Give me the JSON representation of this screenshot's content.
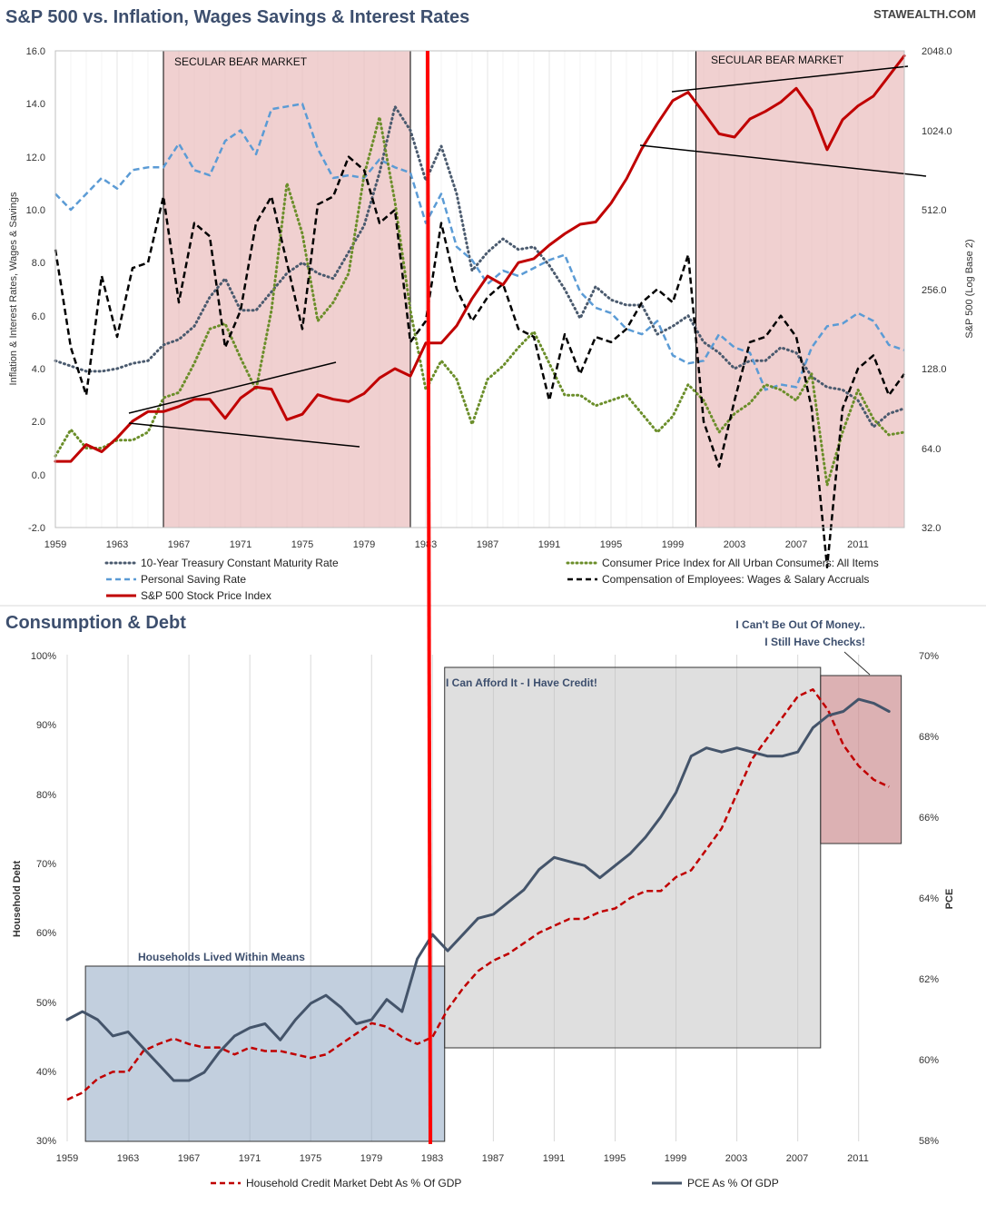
{
  "site": "STAWEALTH.COM",
  "chart_data": [
    {
      "type": "line",
      "title": "S&P 500 vs. Inflation, Wages Savings & Interest Rates",
      "ylabel_left": "Inflation & Interest Rates, Wages & Savings",
      "ylabel_right": "S&P 500  (Log Base 2)",
      "x_range": [
        1959,
        2014
      ],
      "x_ticks": [
        "1959",
        "1963",
        "1967",
        "1971",
        "1975",
        "1979",
        "1983",
        "1987",
        "1991",
        "1995",
        "1999",
        "2003",
        "2007",
        "2011"
      ],
      "ylim_left": [
        -2,
        16
      ],
      "y_ticks_left": [
        "16.0",
        "14.0",
        "12.0",
        "10.0",
        "8.0",
        "6.0",
        "4.0",
        "2.0",
        "0.0",
        "-2.0"
      ],
      "ylim_right_log2": [
        32,
        2048
      ],
      "y_ticks_right": [
        "2048.0",
        "1024.0",
        "512.0",
        "256.0",
        "128.0",
        "64.0",
        "32.0"
      ],
      "shaded_regions": [
        {
          "label": "SECULAR BEAR MARKET",
          "start": 1966,
          "end": 1982
        },
        {
          "label": "SECULAR BEAR MARKET",
          "start": 2000.5,
          "end": 2014
        }
      ],
      "series": [
        {
          "name": "10-Year Treasury Constant Maturity Rate",
          "color": "#4a5a6e",
          "style": "dotted",
          "x": [
            1959,
            1960,
            1961,
            1962,
            1963,
            1964,
            1965,
            1966,
            1967,
            1968,
            1969,
            1970,
            1971,
            1972,
            1973,
            1974,
            1975,
            1976,
            1977,
            1978,
            1979,
            1980,
            1981,
            1982,
            1983,
            1984,
            1985,
            1986,
            1987,
            1988,
            1989,
            1990,
            1991,
            1992,
            1993,
            1994,
            1995,
            1996,
            1997,
            1998,
            1999,
            2000,
            2001,
            2002,
            2003,
            2004,
            2005,
            2006,
            2007,
            2008,
            2009,
            2010,
            2011,
            2012,
            2013,
            2014
          ],
          "values": [
            4.3,
            4.1,
            3.9,
            3.9,
            4.0,
            4.2,
            4.3,
            4.9,
            5.1,
            5.6,
            6.7,
            7.4,
            6.2,
            6.2,
            6.9,
            7.6,
            8.0,
            7.6,
            7.4,
            8.4,
            9.4,
            11.4,
            13.9,
            13.0,
            11.1,
            12.4,
            10.6,
            7.7,
            8.4,
            8.9,
            8.5,
            8.6,
            7.9,
            7.0,
            5.9,
            7.1,
            6.6,
            6.4,
            6.4,
            5.3,
            5.6,
            6.0,
            5.0,
            4.6,
            4.0,
            4.3,
            4.3,
            4.8,
            4.6,
            3.7,
            3.3,
            3.2,
            2.8,
            1.8,
            2.3,
            2.5
          ]
        },
        {
          "name": "Personal Saving Rate",
          "color": "#5b9bd5",
          "style": "dashed",
          "x": [
            1959,
            1960,
            1961,
            1962,
            1963,
            1964,
            1965,
            1966,
            1967,
            1968,
            1969,
            1970,
            1971,
            1972,
            1973,
            1974,
            1975,
            1976,
            1977,
            1978,
            1979,
            1980,
            1981,
            1982,
            1983,
            1984,
            1985,
            1986,
            1987,
            1988,
            1989,
            1990,
            1991,
            1992,
            1993,
            1994,
            1995,
            1996,
            1997,
            1998,
            1999,
            2000,
            2001,
            2002,
            2003,
            2004,
            2005,
            2006,
            2007,
            2008,
            2009,
            2010,
            2011,
            2012,
            2013,
            2014
          ],
          "values": [
            10.6,
            10.0,
            10.6,
            11.2,
            10.8,
            11.5,
            11.6,
            11.6,
            12.5,
            11.5,
            11.3,
            12.6,
            13.0,
            12.1,
            13.8,
            13.9,
            14.0,
            12.3,
            11.2,
            11.3,
            11.2,
            11.9,
            11.6,
            11.4,
            9.5,
            10.6,
            8.6,
            8.1,
            7.2,
            7.7,
            7.5,
            7.8,
            8.1,
            8.3,
            6.9,
            6.3,
            6.1,
            5.5,
            5.3,
            5.8,
            4.5,
            4.2,
            4.3,
            5.3,
            4.8,
            4.6,
            3.2,
            3.4,
            3.3,
            4.8,
            5.6,
            5.7,
            6.1,
            5.8,
            4.9,
            4.7
          ]
        },
        {
          "name": "Consumer Price Index for All Urban Consumers: All Items",
          "color": "#6b8e2a",
          "style": "dotted",
          "x": [
            1959,
            1960,
            1961,
            1962,
            1963,
            1964,
            1965,
            1966,
            1967,
            1968,
            1969,
            1970,
            1971,
            1972,
            1973,
            1974,
            1975,
            1976,
            1977,
            1978,
            1979,
            1980,
            1981,
            1982,
            1983,
            1984,
            1985,
            1986,
            1987,
            1988,
            1989,
            1990,
            1991,
            1992,
            1993,
            1994,
            1995,
            1996,
            1997,
            1998,
            1999,
            2000,
            2001,
            2002,
            2003,
            2004,
            2005,
            2006,
            2007,
            2008,
            2009,
            2010,
            2011,
            2012,
            2013,
            2014
          ],
          "values": [
            0.7,
            1.7,
            1.0,
            1.0,
            1.3,
            1.3,
            1.6,
            2.9,
            3.1,
            4.2,
            5.5,
            5.7,
            4.4,
            3.2,
            6.2,
            11.0,
            9.1,
            5.8,
            6.5,
            7.6,
            11.3,
            13.5,
            10.3,
            6.2,
            3.2,
            4.3,
            3.6,
            1.9,
            3.6,
            4.1,
            4.8,
            5.4,
            4.2,
            3.0,
            3.0,
            2.6,
            2.8,
            3.0,
            2.3,
            1.6,
            2.2,
            3.4,
            2.8,
            1.6,
            2.3,
            2.7,
            3.4,
            3.2,
            2.8,
            3.8,
            -0.4,
            1.6,
            3.2,
            2.1,
            1.5,
            1.6
          ]
        },
        {
          "name": "Compensation of Employees: Wages & Salary Accruals",
          "color": "#000000",
          "style": "dashed",
          "x": [
            1959,
            1960,
            1961,
            1962,
            1963,
            1964,
            1965,
            1966,
            1967,
            1968,
            1969,
            1970,
            1971,
            1972,
            1973,
            1974,
            1975,
            1976,
            1977,
            1978,
            1979,
            1980,
            1981,
            1982,
            1983,
            1984,
            1985,
            1986,
            1987,
            1988,
            1989,
            1990,
            1991,
            1992,
            1993,
            1994,
            1995,
            1996,
            1997,
            1998,
            1999,
            2000,
            2001,
            2002,
            2003,
            2004,
            2005,
            2006,
            2007,
            2008,
            2009,
            2010,
            2011,
            2012,
            2013,
            2014
          ],
          "values": [
            8.5,
            4.8,
            3.0,
            7.5,
            5.2,
            7.8,
            8.0,
            10.5,
            6.5,
            9.5,
            9.0,
            4.8,
            6.2,
            9.5,
            10.5,
            8.0,
            5.5,
            10.2,
            10.5,
            12.0,
            11.5,
            9.5,
            10.0,
            5.0,
            5.8,
            9.5,
            7.0,
            5.8,
            6.7,
            7.2,
            5.5,
            5.2,
            2.8,
            5.3,
            3.8,
            5.2,
            5.0,
            5.5,
            6.5,
            7.0,
            6.5,
            8.3,
            2.0,
            0.3,
            2.8,
            5.0,
            5.2,
            6.0,
            5.2,
            2.5,
            -3.5,
            2.5,
            4.0,
            4.5,
            3.0,
            3.8
          ]
        },
        {
          "name": "S&P 500 Stock Price Index",
          "color": "#c00000",
          "style": "solid",
          "axis": "right",
          "x": [
            1959,
            1960,
            1961,
            1962,
            1963,
            1964,
            1965,
            1966,
            1967,
            1968,
            1969,
            1970,
            1971,
            1972,
            1973,
            1974,
            1975,
            1976,
            1977,
            1978,
            1979,
            1980,
            1981,
            1982,
            1983,
            1984,
            1985,
            1986,
            1987,
            1988,
            1989,
            1990,
            1991,
            1992,
            1993,
            1994,
            1995,
            1996,
            1997,
            1998,
            1999,
            2000,
            2001,
            2002,
            2003,
            2004,
            2005,
            2006,
            2007,
            2008,
            2009,
            2010,
            2011,
            2012,
            2013,
            2014
          ],
          "values": [
            57,
            57,
            66,
            62,
            70,
            81,
            88,
            88,
            92,
            98,
            98,
            83,
            99,
            109,
            107,
            82,
            86,
            102,
            98,
            96,
            103,
            118,
            128,
            120,
            160,
            160,
            186,
            236,
            287,
            266,
            323,
            334,
            376,
            415,
            451,
            460,
            542,
            670,
            873,
            1085,
            1327,
            1427,
            1194,
            993,
            965,
            1131,
            1207,
            1310,
            1477,
            1220,
            865,
            1123,
            1267,
            1379,
            1644,
            1960
          ]
        }
      ],
      "legend": [
        "10-Year Treasury Constant Maturity Rate",
        "Consumer Price Index for All Urban Consumers: All Items",
        "Personal Saving Rate",
        "Compensation of Employees: Wages & Salary Accruals",
        "S&P 500 Stock Price Index"
      ]
    },
    {
      "type": "line",
      "title": "Consumption & Debt",
      "ylabel_left": "Household  Debt",
      "ylabel_right": "PCE",
      "x_range": [
        1959,
        2014
      ],
      "x_ticks": [
        "1959",
        "1963",
        "1967",
        "1971",
        "1975",
        "1979",
        "1983",
        "1987",
        "1991",
        "1995",
        "1999",
        "2003",
        "2007",
        "2011"
      ],
      "ylim_left": [
        30,
        100
      ],
      "y_ticks_left": [
        "100%",
        "90%",
        "80%",
        "70%",
        "60%",
        "50%",
        "40%",
        "30%"
      ],
      "ylim_right": [
        58,
        70
      ],
      "y_ticks_right": [
        "70%",
        "68%",
        "66%",
        "64%",
        "62%",
        "60%",
        "58%"
      ],
      "shaded_regions": [
        {
          "label": "Households Lived Within Means",
          "start": 1960.2,
          "end": 1983.8
        },
        {
          "label": "I Can Afford It - I Have Credit!",
          "start": 1983.8,
          "end": 2008.5
        },
        {
          "label": "I Can't Be Out Of Money.. I Still Have Checks!",
          "start": 2008.5,
          "end": 2013.8
        }
      ],
      "annotations": [
        "Households Lived Within Means",
        "I Can Afford It - I Have Credit!",
        "I Can't Be Out Of Money..",
        "I Still Have Checks!"
      ],
      "series": [
        {
          "name": "Household Credit Market Debt As % Of GDP",
          "color": "#c00000",
          "style": "dashed",
          "axis": "left",
          "x": [
            1959,
            1960,
            1961,
            1962,
            1963,
            1964,
            1965,
            1966,
            1967,
            1968,
            1969,
            1970,
            1971,
            1972,
            1973,
            1974,
            1975,
            1976,
            1977,
            1978,
            1979,
            1980,
            1981,
            1982,
            1983,
            1984,
            1985,
            1986,
            1987,
            1988,
            1989,
            1990,
            1991,
            1992,
            1993,
            1994,
            1995,
            1996,
            1997,
            1998,
            1999,
            2000,
            2001,
            2002,
            2003,
            2004,
            2005,
            2006,
            2007,
            2008,
            2009,
            2010,
            2011,
            2012,
            2013
          ],
          "values": [
            36,
            37,
            39,
            40,
            40,
            43,
            44,
            44.8,
            44,
            43.5,
            43.5,
            42.5,
            43.5,
            43,
            43,
            42.5,
            42,
            42.5,
            44,
            45.5,
            47,
            46.5,
            45,
            44,
            45,
            49,
            52,
            54.5,
            56,
            57,
            58.5,
            60,
            61,
            62,
            62,
            63,
            63.5,
            65,
            66,
            66,
            68,
            69,
            72,
            75,
            80,
            85,
            88,
            91,
            94,
            95,
            92,
            87,
            84,
            82,
            81
          ]
        },
        {
          "name": "PCE As % Of GDP",
          "color": "#44546a",
          "style": "solid",
          "axis": "right",
          "x": [
            1959,
            1960,
            1961,
            1962,
            1963,
            1964,
            1965,
            1966,
            1967,
            1968,
            1969,
            1970,
            1971,
            1972,
            1973,
            1974,
            1975,
            1976,
            1977,
            1978,
            1979,
            1980,
            1981,
            1982,
            1983,
            1984,
            1985,
            1986,
            1987,
            1988,
            1989,
            1990,
            1991,
            1992,
            1993,
            1994,
            1995,
            1996,
            1997,
            1998,
            1999,
            2000,
            2001,
            2002,
            2003,
            2004,
            2005,
            2006,
            2007,
            2008,
            2009,
            2010,
            2011,
            2012,
            2013
          ],
          "values": [
            61.0,
            61.2,
            61.0,
            60.6,
            60.7,
            60.3,
            59.9,
            59.5,
            59.5,
            59.7,
            60.2,
            60.6,
            60.8,
            60.9,
            60.5,
            61.0,
            61.4,
            61.6,
            61.3,
            60.9,
            61.0,
            61.5,
            61.2,
            62.5,
            63.1,
            62.7,
            63.1,
            63.5,
            63.6,
            63.9,
            64.2,
            64.7,
            65.0,
            64.9,
            64.8,
            64.5,
            64.8,
            65.1,
            65.5,
            66.0,
            66.6,
            67.5,
            67.7,
            67.6,
            67.7,
            67.6,
            67.5,
            67.5,
            67.6,
            68.2,
            68.5,
            68.6,
            68.9,
            68.8,
            68.6
          ]
        }
      ],
      "legend": [
        "Household Credit Market Debt As % Of GDP",
        "PCE As % Of GDP"
      ]
    }
  ]
}
